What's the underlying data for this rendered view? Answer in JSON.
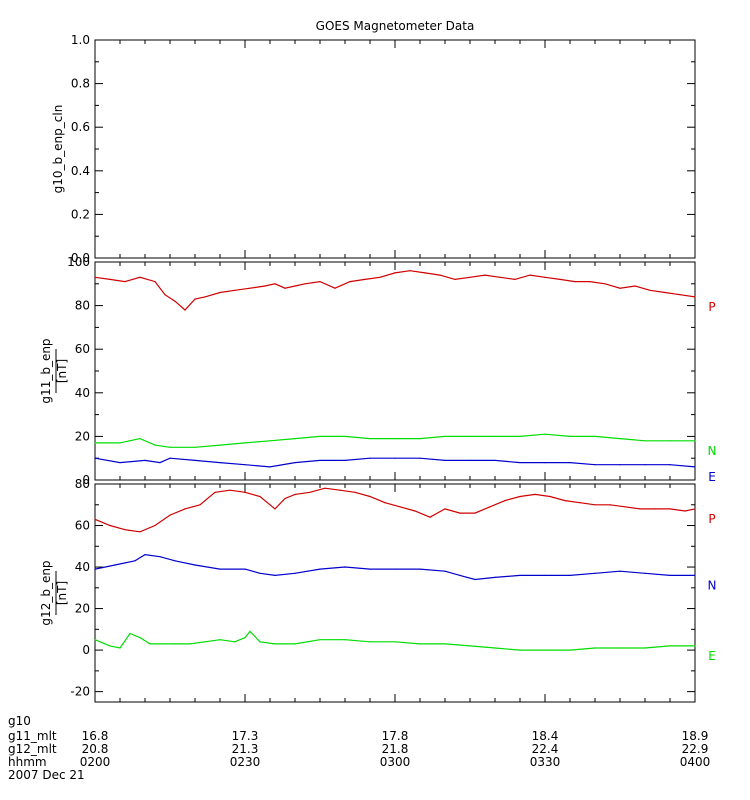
{
  "chart_data": [
    {
      "type": "line",
      "title": "GOES Magnetometer Data",
      "ylabel": "g10_b_enp_cln",
      "units": "",
      "ylim": [
        0,
        1
      ],
      "yticks": [
        "0.0",
        "0.2",
        "0.4",
        "0.6",
        "0.8",
        "1.0"
      ],
      "series": []
    },
    {
      "type": "line",
      "ylabel": "g11_b_enp",
      "units": "[nT]",
      "ylim": [
        0,
        100
      ],
      "yticks": [
        "0",
        "20",
        "40",
        "60",
        "80",
        "100"
      ],
      "series": [
        {
          "name": "P",
          "color": "#d00000",
          "x": [
            0,
            3,
            6,
            9,
            12,
            14,
            16,
            18,
            20,
            22,
            25,
            28,
            31,
            34,
            36,
            38,
            40,
            42,
            45,
            48,
            51,
            54,
            57,
            60,
            63,
            66,
            69,
            72,
            75,
            78,
            81,
            84,
            87,
            90,
            93,
            96,
            99,
            102,
            105,
            108,
            111,
            114,
            117,
            120
          ],
          "values": [
            93,
            92,
            91,
            93,
            91,
            85,
            82,
            78,
            83,
            84,
            86,
            87,
            88,
            89,
            90,
            88,
            89,
            90,
            91,
            88,
            91,
            92,
            93,
            95,
            96,
            95,
            94,
            92,
            93,
            94,
            93,
            92,
            94,
            93,
            92,
            91,
            91,
            90,
            88,
            89,
            87,
            86,
            85,
            84
          ]
        },
        {
          "name": "N",
          "color": "#00dd00",
          "x": [
            0,
            5,
            9,
            12,
            15,
            20,
            25,
            30,
            35,
            40,
            45,
            50,
            55,
            60,
            65,
            70,
            75,
            80,
            85,
            90,
            95,
            100,
            105,
            110,
            115,
            120
          ],
          "values": [
            17,
            17,
            19,
            16,
            15,
            15,
            16,
            17,
            18,
            19,
            20,
            20,
            19,
            19,
            19,
            20,
            20,
            20,
            20,
            21,
            20,
            20,
            19,
            18,
            18,
            18
          ]
        },
        {
          "name": "E",
          "color": "#0000cc",
          "x": [
            0,
            5,
            10,
            13,
            15,
            20,
            25,
            30,
            35,
            40,
            45,
            50,
            55,
            60,
            65,
            70,
            75,
            80,
            85,
            90,
            95,
            100,
            105,
            110,
            115,
            120
          ],
          "values": [
            10,
            8,
            9,
            8,
            10,
            9,
            8,
            7,
            6,
            8,
            9,
            9,
            10,
            10,
            10,
            9,
            9,
            9,
            8,
            8,
            8,
            7,
            7,
            7,
            7,
            6
          ]
        }
      ]
    },
    {
      "type": "line",
      "ylabel": "g12_b_enp",
      "units": "[nT]",
      "ylim": [
        -25,
        80
      ],
      "yticks": [
        "-20",
        "0",
        "20",
        "40",
        "60",
        "80"
      ],
      "series": [
        {
          "name": "P",
          "color": "#d00000",
          "x": [
            0,
            3,
            6,
            9,
            12,
            15,
            18,
            21,
            24,
            27,
            30,
            33,
            36,
            38,
            40,
            43,
            46,
            49,
            52,
            55,
            58,
            61,
            64,
            67,
            70,
            73,
            76,
            79,
            82,
            85,
            88,
            91,
            94,
            97,
            100,
            103,
            106,
            109,
            112,
            115,
            118,
            120
          ],
          "values": [
            63,
            60,
            58,
            57,
            60,
            65,
            68,
            70,
            76,
            77,
            76,
            74,
            68,
            73,
            75,
            76,
            78,
            77,
            76,
            74,
            71,
            69,
            67,
            64,
            68,
            66,
            66,
            69,
            72,
            74,
            75,
            74,
            72,
            71,
            70,
            70,
            69,
            68,
            68,
            68,
            67,
            68
          ]
        },
        {
          "name": "N",
          "color": "#0000cc",
          "x": [
            0,
            4,
            8,
            10,
            13,
            16,
            20,
            25,
            30,
            33,
            36,
            40,
            45,
            50,
            55,
            60,
            65,
            70,
            73,
            76,
            80,
            85,
            90,
            95,
            100,
            105,
            110,
            115,
            120
          ],
          "values": [
            39,
            41,
            43,
            46,
            45,
            43,
            41,
            39,
            39,
            37,
            36,
            37,
            39,
            40,
            39,
            39,
            39,
            38,
            36,
            34,
            35,
            36,
            36,
            36,
            37,
            38,
            37,
            36,
            36
          ]
        },
        {
          "name": "E",
          "color": "#00dd00",
          "x": [
            0,
            3,
            5,
            7,
            9,
            11,
            13,
            16,
            19,
            22,
            25,
            28,
            30,
            31,
            33,
            36,
            40,
            45,
            50,
            55,
            60,
            65,
            70,
            75,
            80,
            85,
            90,
            95,
            100,
            105,
            110,
            115,
            120
          ],
          "values": [
            5,
            2,
            1,
            8,
            6,
            3,
            3,
            3,
            3,
            4,
            5,
            4,
            6,
            9,
            4,
            3,
            3,
            5,
            5,
            4,
            4,
            3,
            3,
            2,
            1,
            0,
            0,
            0,
            1,
            1,
            1,
            2,
            2
          ]
        }
      ]
    }
  ],
  "xaxis": {
    "xlim": [
      0,
      120
    ],
    "tick_positions": [
      0,
      30,
      60,
      90,
      120
    ],
    "rows": [
      {
        "label": "g10",
        "values": [
          "",
          "",
          "",
          "",
          ""
        ]
      },
      {
        "label": "g11_mlt",
        "values": [
          "16.8",
          "17.3",
          "17.8",
          "18.4",
          "18.9"
        ]
      },
      {
        "label": "g12_mlt",
        "values": [
          "20.8",
          "21.3",
          "21.8",
          "22.4",
          "22.9"
        ]
      },
      {
        "label": "hhmm",
        "values": [
          "0200",
          "0230",
          "0300",
          "0330",
          "0400"
        ]
      }
    ],
    "date": "2007 Dec 21"
  }
}
